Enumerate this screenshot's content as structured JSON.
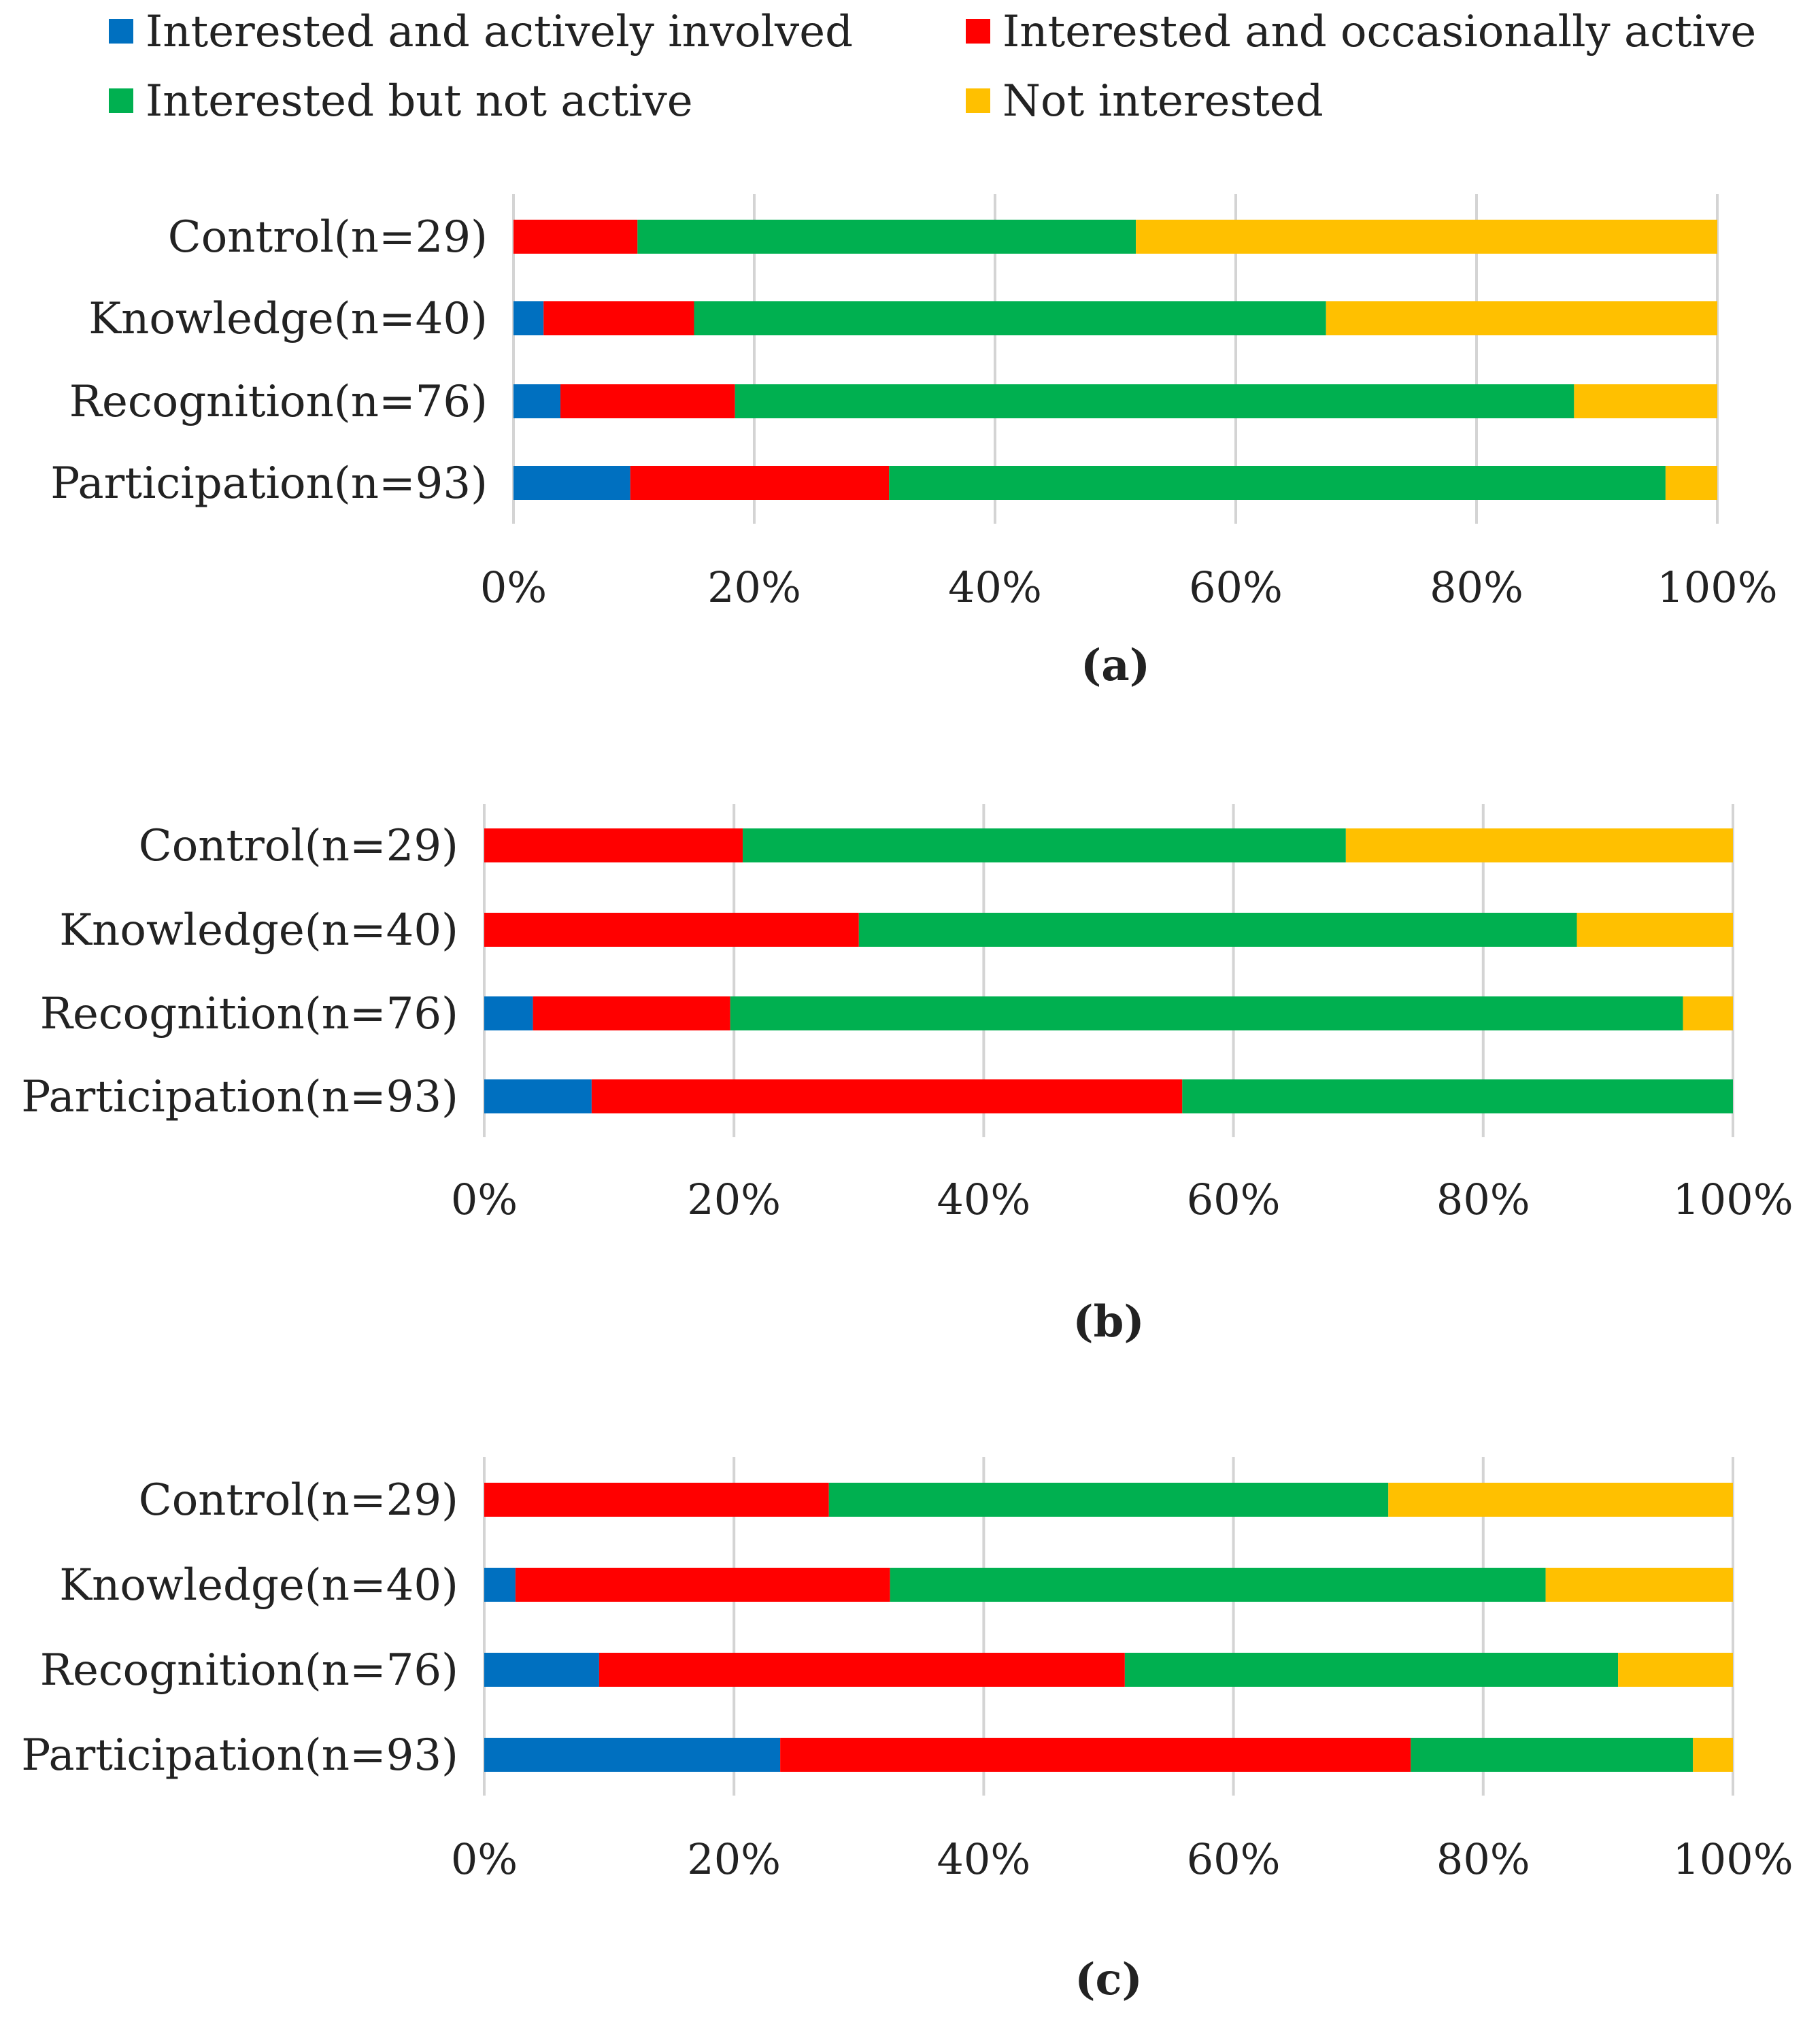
{
  "legend": [
    {
      "label": "Interested and actively involved",
      "color": "#0070C0"
    },
    {
      "label": "Interested and occasionally active",
      "color": "#FF0000"
    },
    {
      "label": "Interested but not active",
      "color": "#00B050"
    },
    {
      "label": "Not interested",
      "color": "#FFC000"
    }
  ],
  "chart_data": [
    {
      "type": "bar",
      "orientation": "horizontal-stacked-percent",
      "caption": "a",
      "categories": [
        "Control(n=29)",
        "Knowledge(n=40)",
        "Recognition(n=76)",
        "Participation(n=93)"
      ],
      "x_ticks": [
        "0%",
        "20%",
        "40%",
        "60%",
        "80%",
        "100%"
      ],
      "xlim": [
        0,
        100
      ],
      "series": [
        {
          "name": "Interested and actively involved",
          "values": [
            0,
            2.5,
            3.9,
            9.7
          ]
        },
        {
          "name": "Interested and occasionally active",
          "values": [
            10.3,
            12.5,
            14.5,
            21.5
          ]
        },
        {
          "name": "Interested but not active",
          "values": [
            41.4,
            52.5,
            69.7,
            64.5
          ]
        },
        {
          "name": "Not interested",
          "values": [
            48.3,
            32.5,
            11.9,
            4.3
          ]
        }
      ]
    },
    {
      "type": "bar",
      "orientation": "horizontal-stacked-percent",
      "caption": "b",
      "categories": [
        "Control(n=29)",
        "Knowledge(n=40)",
        "Recognition(n=76)",
        "Participation(n=93)"
      ],
      "x_ticks": [
        "0%",
        "20%",
        "40%",
        "60%",
        "80%",
        "100%"
      ],
      "xlim": [
        0,
        100
      ],
      "series": [
        {
          "name": "Interested and actively involved",
          "values": [
            0,
            0,
            3.9,
            8.6
          ]
        },
        {
          "name": "Interested and occasionally active",
          "values": [
            20.7,
            30.0,
            15.8,
            47.3
          ]
        },
        {
          "name": "Interested but not active",
          "values": [
            48.3,
            57.5,
            76.3,
            44.1
          ]
        },
        {
          "name": "Not interested",
          "values": [
            31.0,
            12.5,
            4.0,
            0
          ]
        }
      ]
    },
    {
      "type": "bar",
      "orientation": "horizontal-stacked-percent",
      "caption": "c",
      "categories": [
        "Control(n=29)",
        "Knowledge(n=40)",
        "Recognition(n=76)",
        "Participation(n=93)"
      ],
      "x_ticks": [
        "0%",
        "20%",
        "40%",
        "60%",
        "80%",
        "100%"
      ],
      "xlim": [
        0,
        100
      ],
      "series": [
        {
          "name": "Interested and actively involved",
          "values": [
            0,
            2.5,
            9.2,
            23.7
          ]
        },
        {
          "name": "Interested and occasionally active",
          "values": [
            27.6,
            30.0,
            42.1,
            50.5
          ]
        },
        {
          "name": "Interested but not active",
          "values": [
            44.8,
            52.5,
            39.5,
            22.6
          ]
        },
        {
          "name": "Not interested",
          "values": [
            27.6,
            15.0,
            9.2,
            3.2
          ]
        }
      ]
    }
  ]
}
